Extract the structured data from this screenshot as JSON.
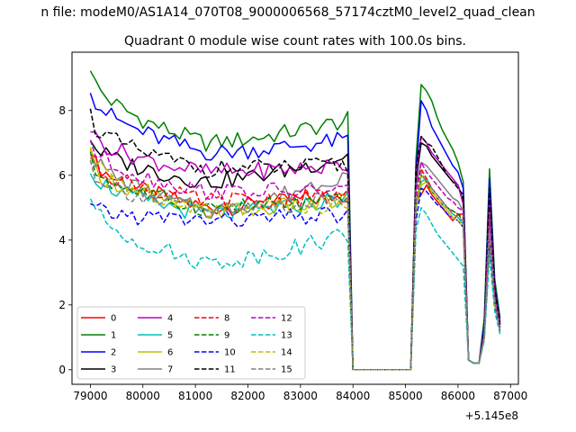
{
  "chart_data": {
    "type": "line",
    "suptitle": "n file: modeM0/AS1A14_070T08_9000006568_57174cztM0_level2_quad_clean",
    "title": "Quadrant 0 module wise count rates with 100.0s bins.",
    "xlabel": "",
    "ylabel": "",
    "x_offset_label": "+5.145e8",
    "xlim": [
      78650,
      87150
    ],
    "ylim": [
      -0.45,
      9.8
    ],
    "x_ticks": [
      79000,
      80000,
      81000,
      82000,
      83000,
      84000,
      85000,
      86000,
      87000
    ],
    "x_tick_labels": [
      "79000",
      "80000",
      "81000",
      "82000",
      "83000",
      "84000",
      "85000",
      "86000",
      "87000"
    ],
    "y_ticks": [
      0,
      2,
      4,
      6,
      8
    ],
    "y_tick_labels": [
      "0",
      "2",
      "4",
      "6",
      "8"
    ],
    "grid": false,
    "legend_position": "lower-left",
    "legend_columns": 4,
    "segments": [
      {
        "x_start": 79000,
        "x_end": 83900,
        "step": 100
      },
      {
        "x_start": 84000,
        "x_end": 85100,
        "step": 100
      },
      {
        "x_start": 85200,
        "x_end": 86000,
        "step": 100
      },
      {
        "x_start": 86100,
        "x_end": 86800,
        "step": 100
      }
    ],
    "series": [
      {
        "name": "0",
        "color": "#ff0000",
        "dash": "solid",
        "start": 6.8,
        "mid": 5.0,
        "end": 5.4,
        "seg3": [
          5.2,
          5.4,
          5.7,
          5.4,
          5.2,
          5.0,
          4.8,
          4.6,
          4.8
        ],
        "seg4": [
          4.8,
          0.3,
          0.2,
          0.2,
          1.0,
          4.0,
          2.2,
          1.3
        ]
      },
      {
        "name": "1",
        "color": "#008000",
        "dash": "solid",
        "start": 9.4,
        "mid": 7.0,
        "end": 7.7,
        "seg3": [
          6.5,
          8.8,
          8.6,
          8.3,
          7.8,
          7.4,
          7.1,
          6.8,
          6.4
        ],
        "seg4": [
          5.8,
          0.3,
          0.2,
          0.2,
          1.6,
          6.2,
          2.8,
          1.6
        ]
      },
      {
        "name": "2",
        "color": "#0000ff",
        "dash": "solid",
        "start": 8.8,
        "mid": 6.7,
        "end": 7.1,
        "seg3": [
          6.1,
          8.3,
          8.0,
          7.5,
          7.2,
          6.9,
          6.6,
          6.3,
          6.1
        ],
        "seg4": [
          5.6,
          0.3,
          0.2,
          0.2,
          1.4,
          5.9,
          2.6,
          1.5
        ]
      },
      {
        "name": "3",
        "color": "#000000",
        "dash": "solid",
        "start": 7.2,
        "mid": 5.8,
        "end": 6.6,
        "seg3": [
          5.8,
          7.0,
          6.9,
          6.6,
          6.4,
          6.2,
          6.0,
          5.8,
          5.7
        ],
        "seg4": [
          5.2,
          0.3,
          0.2,
          0.2,
          1.2,
          5.4,
          2.5,
          1.4
        ]
      },
      {
        "name": "4",
        "color": "#bf00bf",
        "dash": "solid",
        "start": 7.5,
        "mid": 6.1,
        "end": 6.3,
        "seg3": [
          6.0,
          7.2,
          7.0,
          6.7,
          6.5,
          6.3,
          6.1,
          5.9,
          5.7
        ],
        "seg4": [
          5.1,
          0.3,
          0.2,
          0.2,
          1.2,
          5.3,
          2.4,
          1.4
        ]
      },
      {
        "name": "5",
        "color": "#00bfbf",
        "dash": "solid",
        "start": 6.3,
        "mid": 4.8,
        "end": 5.3,
        "seg3": [
          5.0,
          5.8,
          5.9,
          5.6,
          5.4,
          5.2,
          5.0,
          4.8,
          4.7
        ],
        "seg4": [
          4.5,
          0.3,
          0.2,
          0.2,
          1.0,
          4.4,
          2.1,
          1.2
        ]
      },
      {
        "name": "6",
        "color": "#bfbf00",
        "dash": "solid",
        "start": 6.6,
        "mid": 4.9,
        "end": 5.2,
        "seg3": [
          5.0,
          5.7,
          5.8,
          5.5,
          5.3,
          5.1,
          4.9,
          4.7,
          4.6
        ],
        "seg4": [
          4.4,
          0.3,
          0.2,
          0.2,
          1.0,
          4.3,
          2.0,
          1.2
        ]
      },
      {
        "name": "7",
        "color": "#808080",
        "dash": "solid",
        "start": 7.0,
        "mid": 4.9,
        "end": 6.1,
        "seg3": [
          5.6,
          6.4,
          6.3,
          6.1,
          5.9,
          5.7,
          5.5,
          5.3,
          5.2
        ],
        "seg4": [
          4.9,
          0.3,
          0.2,
          0.2,
          1.1,
          4.8,
          2.2,
          1.3
        ]
      },
      {
        "name": "8",
        "color": "#ff0000",
        "dash": "dashed",
        "start": 6.7,
        "mid": 5.2,
        "end": 5.4,
        "seg3": [
          5.2,
          6.2,
          5.9,
          5.6,
          5.4,
          5.2,
          5.0,
          4.9,
          4.8
        ],
        "seg4": [
          4.7,
          0.3,
          0.2,
          0.2,
          1.0,
          4.2,
          2.1,
          1.2
        ]
      },
      {
        "name": "9",
        "color": "#008000",
        "dash": "dashed",
        "start": 6.5,
        "mid": 5.0,
        "end": 5.2,
        "seg3": [
          5.0,
          6.0,
          5.8,
          5.5,
          5.3,
          5.1,
          5.0,
          4.9,
          4.8
        ],
        "seg4": [
          4.6,
          0.3,
          0.2,
          0.2,
          1.0,
          4.1,
          2.0,
          1.2
        ]
      },
      {
        "name": "10",
        "color": "#0000ff",
        "dash": "dashed",
        "start": 5.0,
        "mid": 4.6,
        "end": 4.8,
        "seg3": [
          4.6,
          5.6,
          5.5,
          5.3,
          5.1,
          5.0,
          4.8,
          4.7,
          4.6
        ],
        "seg4": [
          4.4,
          0.3,
          0.2,
          0.2,
          1.0,
          4.0,
          2.0,
          1.2
        ]
      },
      {
        "name": "11",
        "color": "#000000",
        "dash": "dashed",
        "start": 7.9,
        "mid": 6.2,
        "end": 6.3,
        "seg3": [
          6.2,
          7.2,
          7.0,
          6.9,
          6.6,
          6.3,
          6.0,
          5.8,
          5.6
        ],
        "seg4": [
          5.4,
          0.3,
          0.2,
          0.2,
          1.2,
          5.6,
          2.5,
          1.4
        ]
      },
      {
        "name": "12",
        "color": "#bf00bf",
        "dash": "dashed",
        "start": 7.1,
        "mid": 5.5,
        "end": 5.5,
        "seg3": [
          5.5,
          6.4,
          6.1,
          5.9,
          5.7,
          5.5,
          5.3,
          5.2,
          5.0
        ],
        "seg4": [
          4.9,
          0.3,
          0.2,
          0.2,
          1.1,
          4.7,
          2.2,
          1.3
        ]
      },
      {
        "name": "13",
        "color": "#00bfbf",
        "dash": "dashed",
        "start": 5.4,
        "mid": 3.3,
        "end": 4.2,
        "seg3": [
          4.3,
          5.0,
          4.8,
          4.5,
          4.2,
          4.0,
          3.8,
          3.6,
          3.4
        ],
        "seg4": [
          3.2,
          0.3,
          0.2,
          0.2,
          0.9,
          3.5,
          1.8,
          1.1
        ]
      },
      {
        "name": "14",
        "color": "#bfbf00",
        "dash": "dashed",
        "start": 6.8,
        "mid": 5.0,
        "end": 5.1,
        "seg3": [
          5.0,
          6.0,
          5.8,
          5.5,
          5.3,
          5.1,
          4.9,
          4.7,
          4.6
        ],
        "seg4": [
          4.5,
          0.3,
          0.2,
          0.2,
          1.0,
          4.2,
          2.0,
          1.2
        ]
      },
      {
        "name": "15",
        "color": "#808080",
        "dash": "dashed",
        "start": 6.4,
        "mid": 4.9,
        "end": 5.3,
        "seg3": [
          5.1,
          6.1,
          5.8,
          5.6,
          5.4,
          5.2,
          5.0,
          4.8,
          4.7
        ],
        "seg4": [
          4.6,
          0.3,
          0.2,
          0.2,
          1.0,
          4.3,
          2.1,
          1.2
        ]
      }
    ]
  }
}
